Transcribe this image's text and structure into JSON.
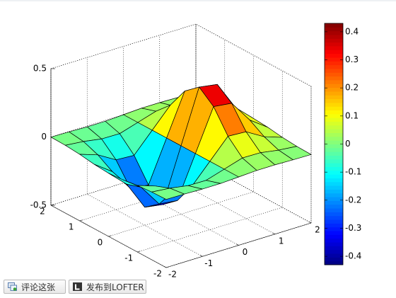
{
  "chart_data": {
    "type": "surface",
    "colormap": "jet",
    "grid": true,
    "x": [
      -2,
      -1.5,
      -1,
      -0.5,
      0,
      0.5,
      1,
      1.5,
      2
    ],
    "y": [
      -2,
      -1.5,
      -1,
      -0.5,
      0,
      0.5,
      1,
      1.5,
      2
    ],
    "z": [
      [
        -0.001,
        -0.003,
        -0.007,
        -0.007,
        0,
        0.007,
        0.007,
        0.003,
        0.001
      ],
      [
        -0.004,
        -0.017,
        -0.039,
        -0.041,
        0,
        0.041,
        0.039,
        0.017,
        0.004
      ],
      [
        -0.013,
        -0.058,
        -0.135,
        -0.143,
        0,
        0.143,
        0.135,
        0.058,
        0.013
      ],
      [
        -0.029,
        -0.123,
        -0.287,
        -0.303,
        0,
        0.303,
        0.287,
        0.123,
        0.029
      ],
      [
        -0.037,
        -0.158,
        -0.368,
        -0.389,
        0,
        0.389,
        0.368,
        0.158,
        0.037
      ],
      [
        -0.029,
        -0.123,
        -0.287,
        -0.303,
        0,
        0.303,
        0.287,
        0.123,
        0.029
      ],
      [
        -0.013,
        -0.058,
        -0.135,
        -0.143,
        0,
        0.143,
        0.135,
        0.058,
        0.013
      ],
      [
        -0.004,
        -0.017,
        -0.039,
        -0.041,
        0,
        0.041,
        0.039,
        0.017,
        0.004
      ],
      [
        -0.001,
        -0.003,
        -0.007,
        -0.007,
        0,
        0.007,
        0.007,
        0.003,
        0.001
      ]
    ],
    "xlim": [
      -2,
      2
    ],
    "ylim": [
      -2,
      2
    ],
    "zlim": [
      -0.5,
      0.5
    ],
    "xticks": [
      -2,
      -1,
      0,
      1,
      2
    ],
    "yticks": [
      -2,
      -1,
      0,
      1,
      2
    ],
    "zticks": [
      -0.5,
      0,
      0.5
    ],
    "clim": [
      -0.43,
      0.43
    ],
    "cticks": [
      -0.4,
      -0.3,
      -0.2,
      -0.1,
      0,
      0.1,
      0.2,
      0.3,
      0.4
    ]
  },
  "buttons": [
    {
      "label": "评论这张"
    },
    {
      "label": "发布到LOFTER"
    }
  ]
}
